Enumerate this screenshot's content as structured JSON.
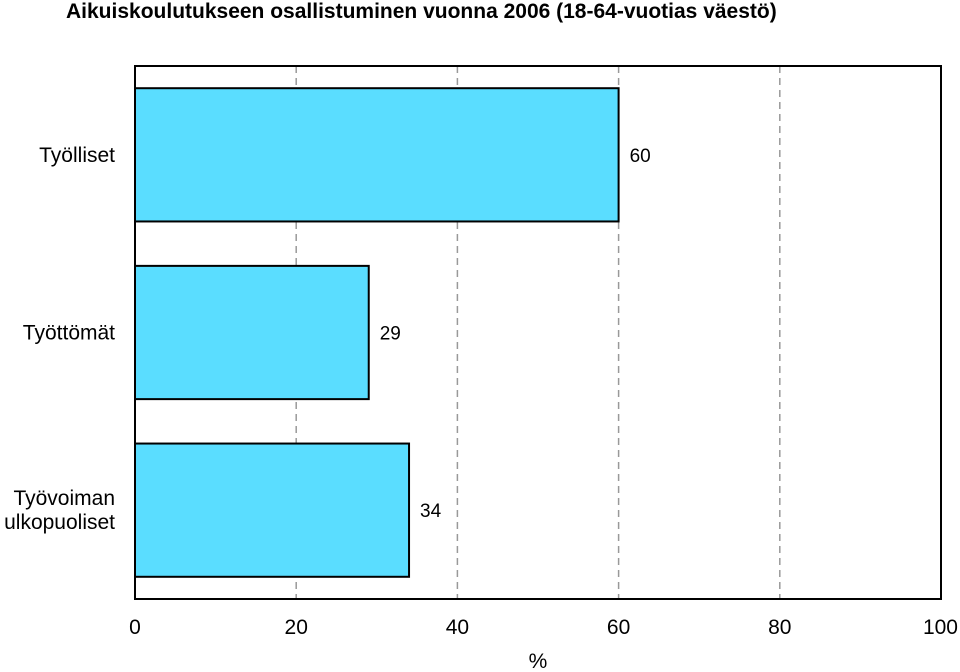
{
  "chart_data": {
    "type": "bar",
    "orientation": "horizontal",
    "title": "Aikuiskoulutukseen osallistuminen vuonna 2006 (18-64-vuotias väestö)",
    "categories": [
      [
        "Työlliset"
      ],
      [
        "Työttömät"
      ],
      [
        "Työvoiman",
        "ulkopuoliset"
      ]
    ],
    "values": [
      60,
      29,
      34
    ],
    "value_labels": [
      "60",
      "29",
      "34"
    ],
    "xlabel": "%",
    "xlim": [
      0,
      100
    ],
    "xticks": [
      0,
      20,
      40,
      60,
      80,
      100
    ],
    "xtick_labels": [
      "0",
      "20",
      "40",
      "60",
      "80",
      "100"
    ],
    "grid": "vertical-dashed",
    "legend": "none",
    "bar_color": "#5ADDFF",
    "grid_color": "#999999"
  }
}
